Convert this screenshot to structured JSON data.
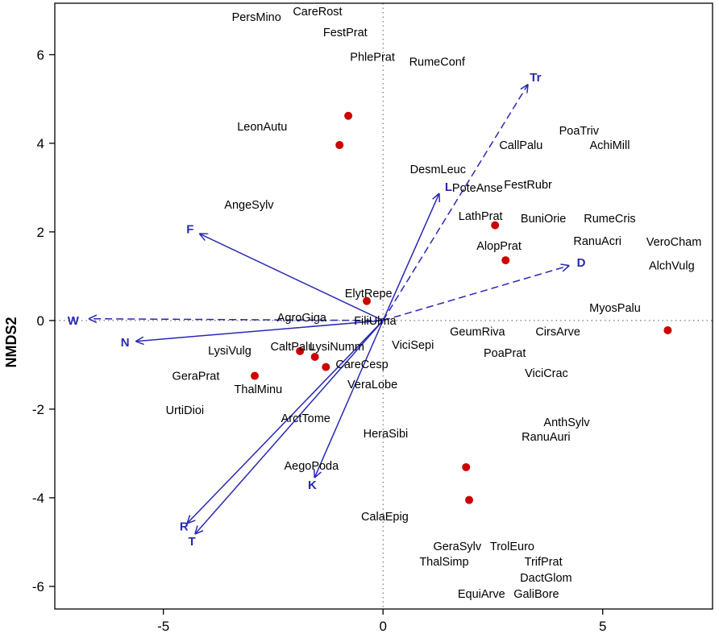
{
  "chart_data": {
    "type": "scatter",
    "title": "",
    "xlabel": "",
    "ylabel": "NMDS2",
    "xlim": [
      -7.47,
      7.5
    ],
    "ylim": [
      -6.51,
      7.16
    ],
    "x_ticks": [
      -5,
      0,
      5
    ],
    "y_ticks": [
      -6,
      -4,
      -2,
      0,
      2,
      4,
      6
    ],
    "zero_lines": true,
    "grid": false,
    "legend": "none",
    "colors": {
      "site_point": "#cc0000",
      "vector": "#2828b4",
      "species_text": "#000000",
      "axis": "#000000",
      "zero_line": "#555555",
      "background": "#ffffff"
    },
    "species": [
      {
        "label": "PersMino",
        "x": -2.88,
        "y": 6.85
      },
      {
        "label": "CareRost",
        "x": -1.49,
        "y": 6.98
      },
      {
        "label": "FestPrat",
        "x": -0.86,
        "y": 6.51
      },
      {
        "label": "PhlePrat",
        "x": -0.24,
        "y": 5.95
      },
      {
        "label": "RumeConf",
        "x": 1.23,
        "y": 5.84
      },
      {
        "label": "LeonAutu",
        "x": -2.75,
        "y": 4.38
      },
      {
        "label": "PoaTriv",
        "x": 4.46,
        "y": 4.29
      },
      {
        "label": "AchiMill",
        "x": 5.16,
        "y": 3.96
      },
      {
        "label": "CallPalu",
        "x": 3.14,
        "y": 3.96
      },
      {
        "label": "DesmLeuc",
        "x": 1.25,
        "y": 3.42
      },
      {
        "label": "PoteAnse",
        "x": 2.15,
        "y": 3.0
      },
      {
        "label": "FestRubr",
        "x": 3.3,
        "y": 3.07
      },
      {
        "label": "AngeSylv",
        "x": -3.05,
        "y": 2.62
      },
      {
        "label": "LathPrat",
        "x": 2.22,
        "y": 2.36
      },
      {
        "label": "BuniOrie",
        "x": 3.65,
        "y": 2.31
      },
      {
        "label": "RumeCris",
        "x": 5.16,
        "y": 2.31
      },
      {
        "label": "AlopPrat",
        "x": 2.64,
        "y": 1.69
      },
      {
        "label": "RanuAcri",
        "x": 4.88,
        "y": 1.8
      },
      {
        "label": "VeroCham",
        "x": 6.62,
        "y": 1.78
      },
      {
        "label": "AlchVulg",
        "x": 6.57,
        "y": 1.24
      },
      {
        "label": "MyosPalu",
        "x": 5.28,
        "y": 0.29
      },
      {
        "label": "ElytRepe",
        "x": -0.33,
        "y": 0.62
      },
      {
        "label": "AgroGiga",
        "x": -1.85,
        "y": 0.07
      },
      {
        "label": "FiliUlma",
        "x": -0.18,
        "y": 0.0
      },
      {
        "label": "GeumRiva",
        "x": 2.15,
        "y": -0.25
      },
      {
        "label": "CirsArve",
        "x": 3.98,
        "y": -0.25
      },
      {
        "label": "LysiVulg",
        "x": -3.49,
        "y": -0.67
      },
      {
        "label": "CaltPalu",
        "x": -2.06,
        "y": -0.58
      },
      {
        "label": "LysiNumm",
        "x": -1.05,
        "y": -0.58
      },
      {
        "label": "ViciSepi",
        "x": 0.68,
        "y": -0.55
      },
      {
        "label": "PoaPrat",
        "x": 2.77,
        "y": -0.73
      },
      {
        "label": "ViciCrac",
        "x": 3.72,
        "y": -1.18
      },
      {
        "label": "CareCesp",
        "x": -0.48,
        "y": -0.98
      },
      {
        "label": "GeraPrat",
        "x": -4.26,
        "y": -1.25
      },
      {
        "label": "ThalMinu",
        "x": -2.84,
        "y": -1.55
      },
      {
        "label": "VeraLobe",
        "x": -0.24,
        "y": -1.44
      },
      {
        "label": "UrtiDioi",
        "x": -4.51,
        "y": -2.02
      },
      {
        "label": "ArctTome",
        "x": -1.76,
        "y": -2.2
      },
      {
        "label": "HeraSibi",
        "x": 0.06,
        "y": -2.55
      },
      {
        "label": "AnthSylv",
        "x": 4.18,
        "y": -2.29
      },
      {
        "label": "RanuAuri",
        "x": 3.71,
        "y": -2.62
      },
      {
        "label": "AegoPoda",
        "x": -1.63,
        "y": -3.27
      },
      {
        "label": "CalaEpig",
        "x": 0.04,
        "y": -4.42
      },
      {
        "label": "GeraSylv",
        "x": 1.69,
        "y": -5.09
      },
      {
        "label": "TrolEuro",
        "x": 2.94,
        "y": -5.09
      },
      {
        "label": "ThalSimp",
        "x": 1.39,
        "y": -5.44
      },
      {
        "label": "TrifPrat",
        "x": 3.65,
        "y": -5.44
      },
      {
        "label": "DactGlom",
        "x": 3.71,
        "y": -5.8
      },
      {
        "label": "EquiArve",
        "x": 2.24,
        "y": -6.16
      },
      {
        "label": "GaliBore",
        "x": 3.49,
        "y": -6.16
      }
    ],
    "sites": [
      {
        "x": -0.79,
        "y": 4.62
      },
      {
        "x": -0.99,
        "y": 3.96
      },
      {
        "x": 2.55,
        "y": 2.15
      },
      {
        "x": 2.79,
        "y": 1.36
      },
      {
        "x": -0.37,
        "y": 0.44
      },
      {
        "x": 6.48,
        "y": -0.22
      },
      {
        "x": -1.89,
        "y": -0.69
      },
      {
        "x": -1.55,
        "y": -0.82
      },
      {
        "x": -2.92,
        "y": -1.25
      },
      {
        "x": -1.3,
        "y": -1.05
      },
      {
        "x": 1.89,
        "y": -3.31
      },
      {
        "x": 1.96,
        "y": -4.05
      }
    ],
    "vectors": [
      {
        "label": "Tr",
        "x": 3.3,
        "y": 5.33,
        "style": "dashed",
        "label_x": 3.47,
        "label_y": 5.49
      },
      {
        "label": "L",
        "x": 1.28,
        "y": 2.87,
        "style": "solid",
        "label_x": 1.49,
        "label_y": 3.02
      },
      {
        "label": "F",
        "x": -4.18,
        "y": 1.96,
        "style": "solid",
        "label_x": -4.39,
        "label_y": 2.07
      },
      {
        "label": "W",
        "x": -6.7,
        "y": 0.04,
        "style": "dashed",
        "label_x": -7.05,
        "label_y": 0.0
      },
      {
        "label": "N",
        "x": -5.63,
        "y": -0.47,
        "style": "solid",
        "label_x": -5.87,
        "label_y": -0.49
      },
      {
        "label": "D",
        "x": 4.24,
        "y": 1.24,
        "style": "dashed",
        "label_x": 4.51,
        "label_y": 1.31
      },
      {
        "label": "K",
        "x": -1.56,
        "y": -3.55,
        "style": "solid",
        "label_x": -1.61,
        "label_y": -3.71
      },
      {
        "label": "R",
        "x": -4.46,
        "y": -4.58,
        "style": "solid",
        "label_x": -4.53,
        "label_y": -4.64
      },
      {
        "label": "T",
        "x": -4.28,
        "y": -4.82,
        "style": "solid",
        "label_x": -4.35,
        "label_y": -4.98
      }
    ]
  }
}
